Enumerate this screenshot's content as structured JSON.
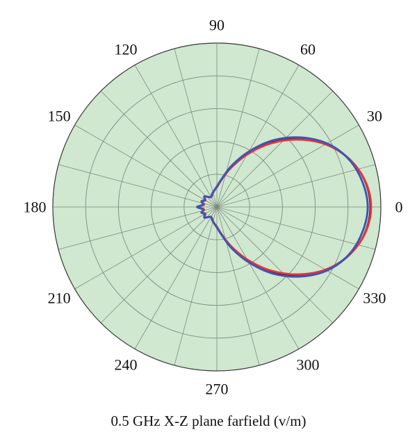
{
  "chart_data": {
    "type": "polar",
    "title": "0.5 GHz X-Z plane farfield (v/m)",
    "angle_ticks": [
      "0",
      "30",
      "60",
      "90",
      "120",
      "150",
      "180",
      "210",
      "240",
      "270",
      "300",
      "330"
    ],
    "angle_unit": "degrees",
    "rlim": [
      0,
      1
    ],
    "radial_gridlines": [
      0.2,
      0.4,
      0.6,
      0.8,
      1.0
    ],
    "angular_gridline_step_deg": 15,
    "grid": true,
    "legend": "none",
    "series": [
      {
        "color": "#000000",
        "theta": [
          0,
          10,
          20,
          30,
          40,
          50,
          60,
          70,
          80,
          90,
          100,
          110,
          120,
          130,
          140,
          150,
          160,
          170,
          180,
          190,
          200,
          210,
          220,
          230,
          240,
          250,
          260,
          270,
          280,
          290,
          300,
          310,
          320,
          330,
          340,
          350,
          360
        ],
        "r": [
          0.935,
          0.915,
          0.86,
          0.77,
          0.65,
          0.52,
          0.38,
          0.26,
          0.17,
          0.12,
          0.1,
          0.08,
          0.07,
          0.08,
          0.1,
          0.08,
          0.1,
          0.08,
          0.12,
          0.08,
          0.1,
          0.08,
          0.1,
          0.08,
          0.07,
          0.08,
          0.1,
          0.12,
          0.17,
          0.26,
          0.38,
          0.52,
          0.65,
          0.77,
          0.86,
          0.915,
          0.935
        ]
      },
      {
        "color": "#e8323c",
        "theta": [
          0,
          10,
          20,
          30,
          40,
          50,
          60,
          70,
          80,
          90,
          100,
          110,
          120,
          130,
          140,
          150,
          160,
          170,
          180,
          190,
          200,
          210,
          220,
          230,
          240,
          250,
          260,
          270,
          280,
          290,
          300,
          310,
          320,
          330,
          340,
          350,
          360
        ],
        "r": [
          0.94,
          0.918,
          0.858,
          0.765,
          0.64,
          0.505,
          0.37,
          0.255,
          0.17,
          0.12,
          0.1,
          0.08,
          0.07,
          0.08,
          0.1,
          0.08,
          0.1,
          0.08,
          0.12,
          0.08,
          0.1,
          0.08,
          0.1,
          0.08,
          0.07,
          0.08,
          0.1,
          0.12,
          0.17,
          0.255,
          0.37,
          0.505,
          0.64,
          0.765,
          0.858,
          0.918,
          0.94
        ]
      },
      {
        "color": "#3d56b3",
        "theta": [
          0,
          10,
          20,
          30,
          40,
          50,
          60,
          70,
          80,
          90,
          100,
          110,
          120,
          130,
          140,
          150,
          160,
          170,
          180,
          190,
          200,
          210,
          220,
          230,
          240,
          250,
          260,
          270,
          280,
          290,
          300,
          310,
          320,
          330,
          340,
          350,
          360
        ],
        "r": [
          0.92,
          0.9,
          0.855,
          0.775,
          0.66,
          0.53,
          0.39,
          0.27,
          0.175,
          0.125,
          0.1,
          0.085,
          0.07,
          0.08,
          0.1,
          0.085,
          0.1,
          0.085,
          0.12,
          0.085,
          0.1,
          0.085,
          0.1,
          0.08,
          0.07,
          0.085,
          0.1,
          0.125,
          0.175,
          0.27,
          0.39,
          0.53,
          0.66,
          0.775,
          0.855,
          0.9,
          0.92
        ]
      }
    ]
  },
  "colors": {
    "plot_background": "#cfe8cf",
    "gridline": "#7f8a7f",
    "outer_ring": "#3a3a3a"
  }
}
